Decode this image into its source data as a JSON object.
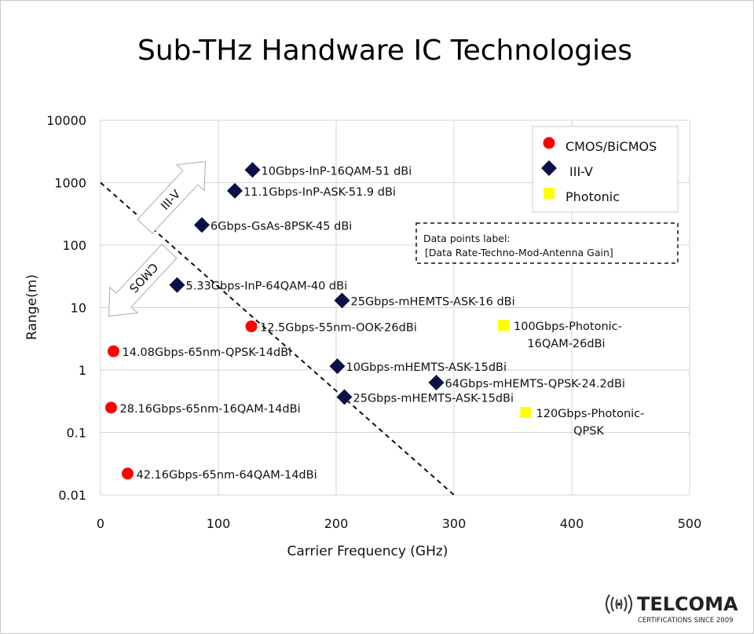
{
  "chart_data": {
    "type": "scatter",
    "title": "Sub-THz Handware IC Technologies",
    "xlabel": "Carrier Frequency (GHz)",
    "ylabel": "Range(m)",
    "xlim": [
      0,
      500
    ],
    "ylim": [
      0.01,
      10000
    ],
    "yscale": "log",
    "grid": true,
    "xticks": [
      "0",
      "100",
      "200",
      "300",
      "400",
      "500"
    ],
    "yticks": [
      "10000",
      "1000",
      "100",
      "10",
      "1",
      "0.1",
      "0.01"
    ],
    "legend_position": "top-right",
    "series": [
      {
        "name": "CMOS/BiCMOS",
        "marker": "circle",
        "color": "#ff0000",
        "points": [
          {
            "x": 128,
            "y": 5,
            "label": "12.5Gbps-55nm-OOK-26dBi"
          },
          {
            "x": 11,
            "y": 2,
            "label": "14.08Gbps-65nm-QPSK-14dBi"
          },
          {
            "x": 9,
            "y": 0.25,
            "label": "28.16Gbps-65nm-16QAM-14dBi"
          },
          {
            "x": 23,
            "y": 0.022,
            "label": "42.16Gbps-65nm-64QAM-14dBi"
          }
        ]
      },
      {
        "name": "III-V",
        "marker": "diamond",
        "color": "#0a1048",
        "points": [
          {
            "x": 129,
            "y": 1600,
            "label": "10Gbps-InP-16QAM-51 dBi"
          },
          {
            "x": 114,
            "y": 740,
            "label": "11.1Gbps-InP-ASK-51.9 dBi"
          },
          {
            "x": 86,
            "y": 210,
            "label": "6Gbps-GsAs-8PSK-45 dBi"
          },
          {
            "x": 65,
            "y": 23,
            "label": "5.33Gbps-InP-64QAM-40 dBi"
          },
          {
            "x": 205,
            "y": 13,
            "label": "25Gbps-mHEMTS-ASK-16 dBi"
          },
          {
            "x": 201,
            "y": 1.15,
            "label": "10Gbps-mHEMTS-ASK-15dBi"
          },
          {
            "x": 285,
            "y": 0.63,
            "label": "64Gbps-mHEMTS-QPSK-24.2dBi"
          },
          {
            "x": 207,
            "y": 0.37,
            "label": "25Gbps-mHEMTS-ASK-15dBi"
          }
        ]
      },
      {
        "name": "Photonic",
        "marker": "square",
        "color": "#ffff00",
        "points": [
          {
            "x": 342,
            "y": 5.2,
            "label": [
              "100Gbps-Photonic-",
              "16QAM-26dBi"
            ]
          },
          {
            "x": 361,
            "y": 0.21,
            "label": [
              "120Gbps-Photonic-",
              "QPSK"
            ]
          }
        ]
      }
    ],
    "boundary_line": {
      "style": "dashed",
      "from": {
        "x": 0,
        "y": 1000
      },
      "to": {
        "x": 300,
        "y": 0.01
      }
    },
    "annotations": {
      "arrow_up": "III-V",
      "arrow_down": "CMOS",
      "note_line1": "Data points label:",
      "note_line2": "[Data Rate-Techno-Mod-Antenna Gain]"
    }
  },
  "logo": {
    "name": "TELCOMA",
    "tagline": "CERTIFICATIONS SINCE 2009"
  }
}
